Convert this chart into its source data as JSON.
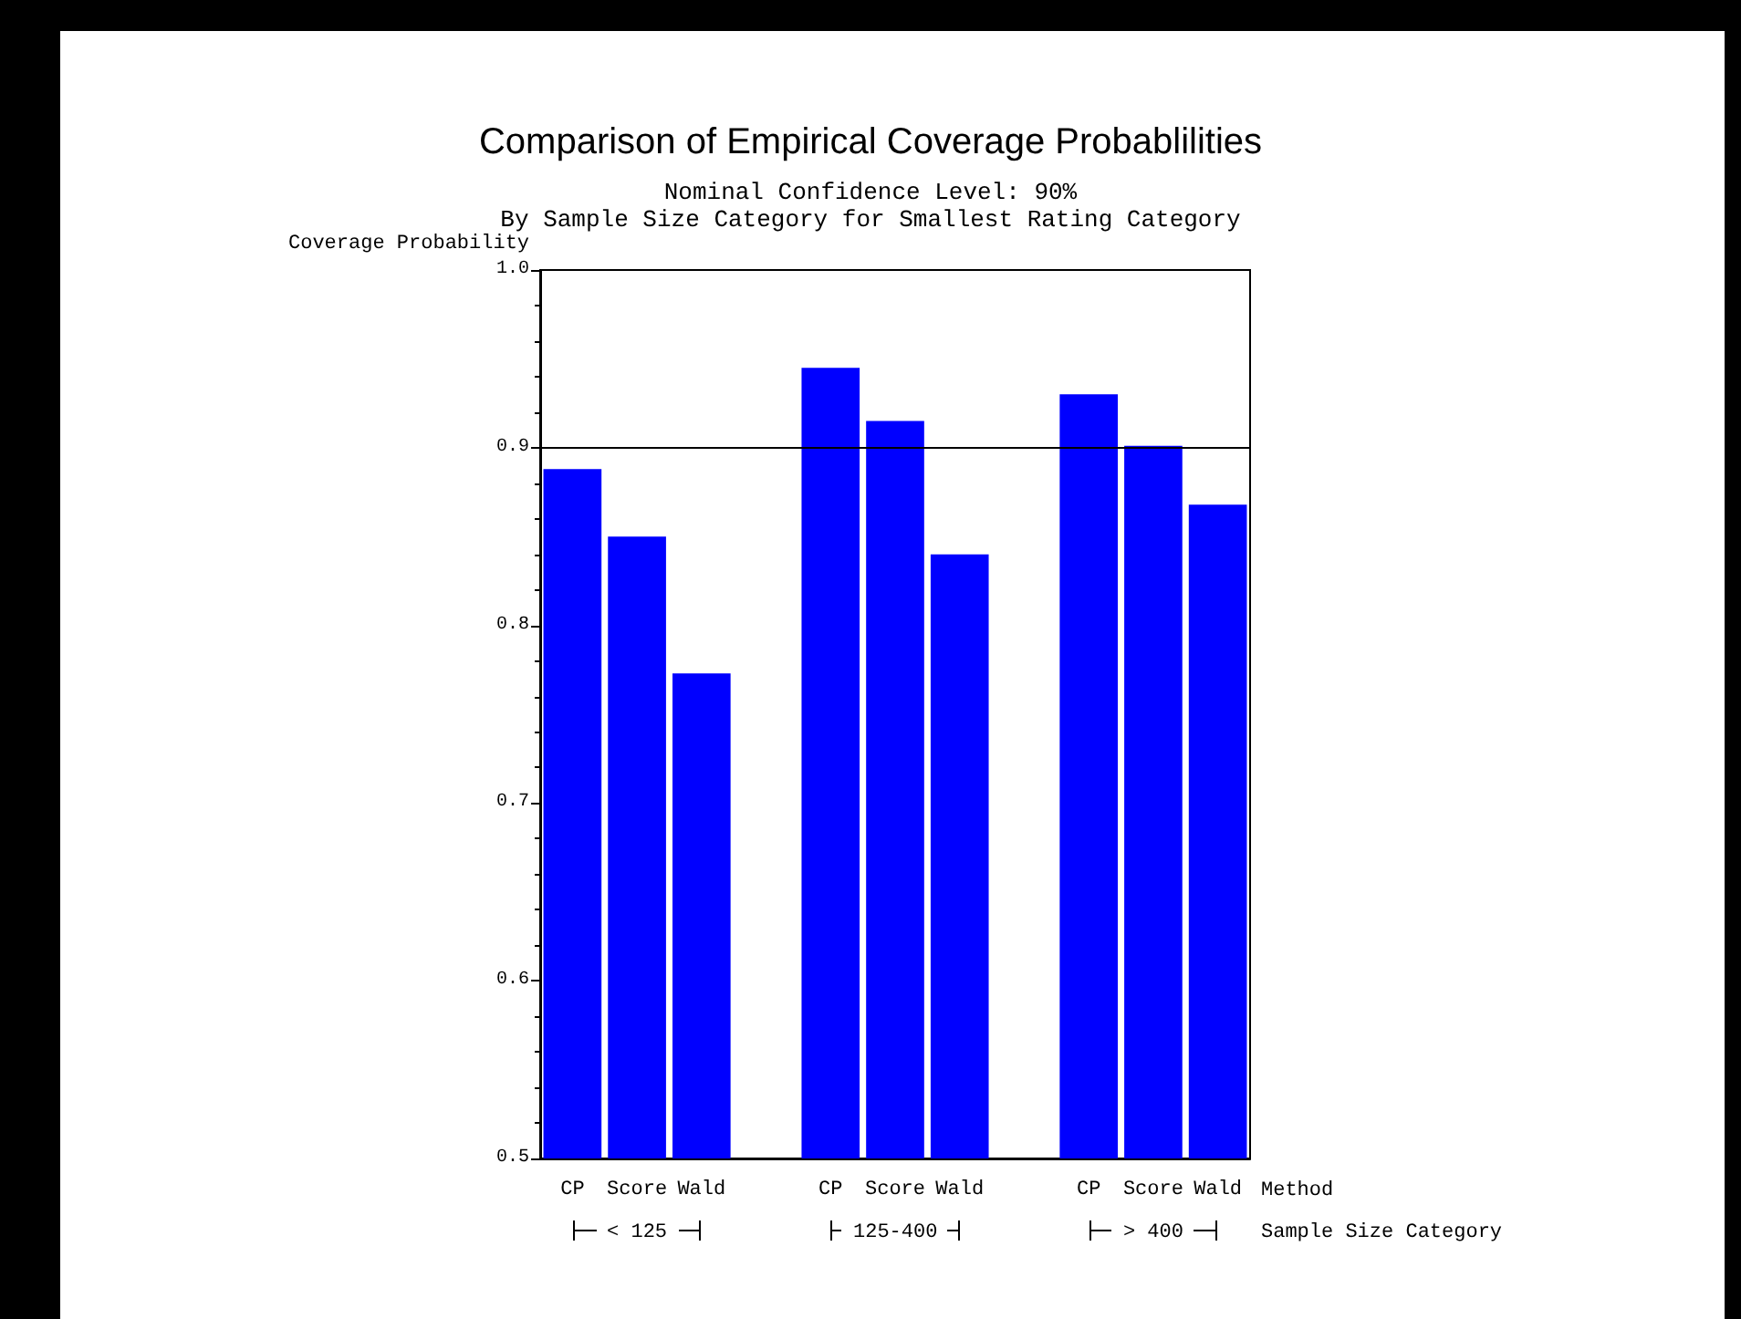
{
  "chart_data": {
    "type": "bar",
    "title": "Comparison of Empirical Coverage Probablilities",
    "subtitle": "Nominal Confidence Level: 90%\nBy Sample Size Category for Smallest Rating Category",
    "xlabel": "Method",
    "ylabel": "Coverage Probability",
    "categories": [
      "CP",
      "Score",
      "Wald",
      null,
      "CP",
      "Score",
      "Wald",
      null,
      "CP",
      "Score",
      "Wald"
    ],
    "values": [
      0.888,
      0.85,
      0.773,
      null,
      0.945,
      0.915,
      0.84,
      null,
      0.93,
      0.901,
      0.868
    ],
    "color": "#0000ff",
    "ylim": [
      0.5,
      1.0
    ],
    "yticks": [
      0.5,
      0.6,
      0.7,
      0.8,
      0.9,
      {
        "value": 1.0,
        "label": "1.0"
      }
    ],
    "ref_lines": [
      {
        "axis": "y",
        "value": 0.9,
        "color": "#000000"
      }
    ],
    "annotations": [
      "< 125",
      "125-400",
      "> 400",
      "Sample Size Category"
    ],
    "grid": false
  }
}
